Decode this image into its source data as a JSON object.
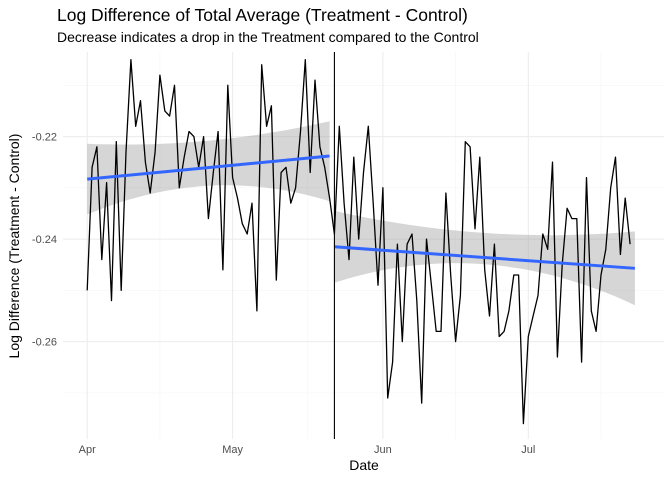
{
  "chart_data": {
    "type": "line",
    "title": "Log Difference of Total Average (Treatment - Control)",
    "subtitle": "Decrease indicates a drop in the Treatment compared to the Control",
    "xlabel": "Date",
    "ylabel": "Log Difference (Treatment - Control)",
    "x_ticks": [
      {
        "label": "Apr",
        "date": "2021-04-01"
      },
      {
        "label": "May",
        "date": "2021-05-01"
      },
      {
        "label": "Jun",
        "date": "2021-06-01"
      },
      {
        "label": "Jul",
        "date": "2021-07-01"
      }
    ],
    "xlim": [
      "2021-03-27",
      "2021-07-29"
    ],
    "ylim": [
      -0.279,
      -0.2035
    ],
    "y_ticks": [
      -0.26,
      -0.24,
      -0.22
    ],
    "grid": true,
    "intervention_date": "2021-05-22",
    "series": [
      {
        "start_date": "2021-04-01",
        "values": [
          -0.25,
          -0.226,
          -0.222,
          -0.244,
          -0.229,
          -0.252,
          -0.221,
          -0.25,
          -0.223,
          -0.205,
          -0.218,
          -0.213,
          -0.225,
          -0.231,
          -0.223,
          -0.208,
          -0.215,
          -0.216,
          -0.21,
          -0.23,
          -0.224,
          -0.219,
          -0.22,
          -0.226,
          -0.22,
          -0.236,
          -0.227,
          -0.219,
          -0.246,
          -0.21,
          -0.228,
          -0.232,
          -0.237,
          -0.239,
          -0.233,
          -0.254,
          -0.206,
          -0.218,
          -0.214,
          -0.248,
          -0.227,
          -0.226,
          -0.233,
          -0.23,
          -0.219,
          -0.205,
          -0.227,
          -0.209,
          -0.222,
          -0.226,
          -0.232,
          -0.239,
          -0.218,
          -0.233,
          -0.244,
          -0.224,
          -0.24,
          -0.227,
          -0.218,
          -0.233,
          -0.249,
          -0.23,
          -0.271,
          -0.264,
          -0.241,
          -0.26,
          -0.241,
          -0.239,
          -0.252,
          -0.272,
          -0.24,
          -0.249,
          -0.258,
          -0.258,
          -0.231,
          -0.247,
          -0.26,
          -0.251,
          -0.221,
          -0.222,
          -0.238,
          -0.224,
          -0.246,
          -0.255,
          -0.241,
          -0.259,
          -0.258,
          -0.254,
          -0.247,
          -0.247,
          -0.276,
          -0.259,
          -0.255,
          -0.251,
          -0.239,
          -0.242,
          -0.225,
          -0.263,
          -0.245,
          -0.234,
          -0.236,
          -0.236,
          -0.264,
          -0.228,
          -0.254,
          -0.258,
          -0.247,
          -0.242,
          -0.23,
          -0.224,
          -0.243,
          -0.232,
          -0.241
        ]
      }
    ],
    "trend_lines": [
      {
        "from_date": "2021-04-01",
        "to_date": "2021-05-21",
        "y_start": -0.2283,
        "y_end": -0.2238,
        "band": {
          "lower_start": -0.2352,
          "lower_mid": -0.2296,
          "lower_end": -0.2326,
          "upper_start": -0.2214,
          "upper_mid": -0.2208,
          "upper_end": -0.217
        }
      },
      {
        "from_date": "2021-05-22",
        "to_date": "2021-07-23",
        "y_start": -0.2415,
        "y_end": -0.2457,
        "band": {
          "lower_start": -0.2485,
          "lower_mid": -0.2449,
          "lower_end": -0.2529,
          "upper_start": -0.2345,
          "upper_mid": -0.2388,
          "upper_end": -0.2385
        }
      }
    ],
    "colors": {
      "line": "#000000",
      "trend": "#3366ff",
      "band": "#999999",
      "grid_major": "#ebebeb",
      "grid_minor": "#f4f4f4",
      "vline": "#000000"
    }
  }
}
